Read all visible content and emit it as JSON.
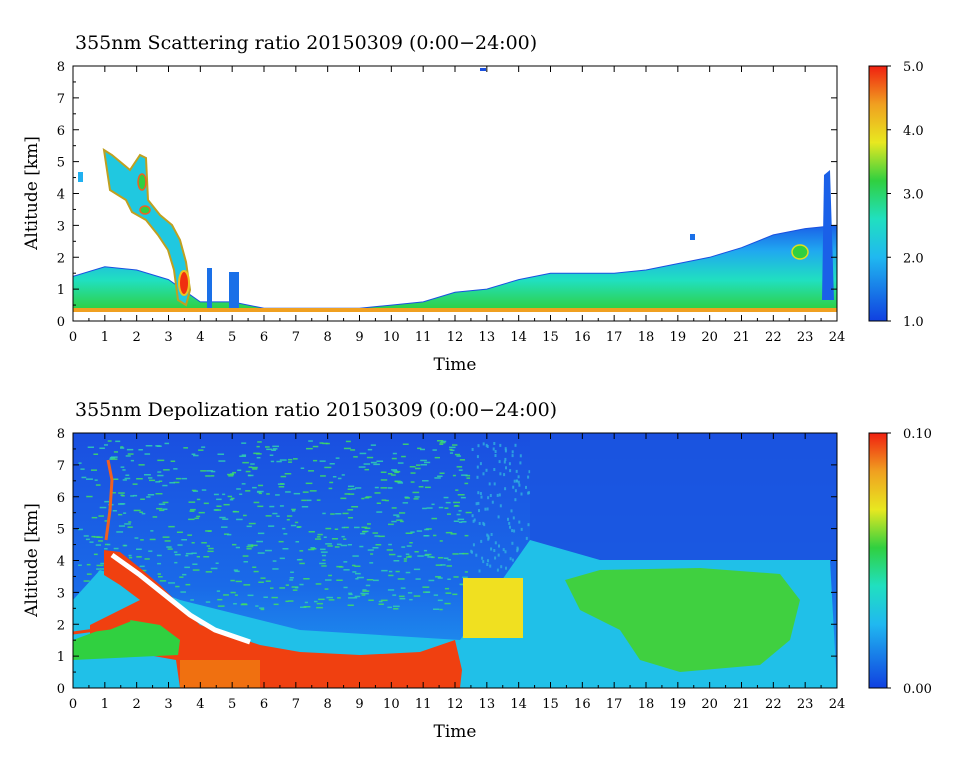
{
  "chart_data": [
    {
      "type": "heatmap",
      "title": "355nm Scattering ratio  20150309 (0:00−24:00)",
      "xlabel": "Time",
      "ylabel": "Altitude [km]",
      "xlim": [
        0,
        24
      ],
      "ylim": [
        0,
        8
      ],
      "xticks": [
        "0",
        "1",
        "2",
        "3",
        "4",
        "5",
        "6",
        "7",
        "8",
        "9",
        "10",
        "11",
        "12",
        "13",
        "14",
        "15",
        "16",
        "17",
        "18",
        "19",
        "20",
        "21",
        "22",
        "23",
        "24"
      ],
      "yticks": [
        "0",
        "1",
        "2",
        "3",
        "4",
        "5",
        "6",
        "7",
        "8"
      ],
      "colorbar": {
        "min": 1.0,
        "max": 5.0,
        "labels": [
          "1.0",
          "2.0",
          "3.0",
          "4.0",
          "5.0"
        ]
      },
      "colors": {
        "low": "#1040e0",
        "mid": "#20e0c0",
        "green": "#30d040",
        "yellow": "#f0e020",
        "high": "#f03010"
      },
      "features": {
        "boundary_layer_top_km": [
          [
            0,
            1.4
          ],
          [
            1,
            1.7
          ],
          [
            2,
            1.6
          ],
          [
            3,
            1.3
          ],
          [
            4,
            0.6
          ],
          [
            5,
            0.6
          ],
          [
            6,
            0.4
          ],
          [
            7,
            0.4
          ],
          [
            8,
            0.4
          ],
          [
            9,
            0.4
          ],
          [
            10,
            0.5
          ],
          [
            11,
            0.6
          ],
          [
            12,
            0.9
          ],
          [
            13,
            1.0
          ],
          [
            14,
            1.3
          ],
          [
            15,
            1.5
          ],
          [
            16,
            1.5
          ],
          [
            17,
            1.5
          ],
          [
            18,
            1.6
          ],
          [
            19,
            1.8
          ],
          [
            20,
            2.0
          ],
          [
            21,
            2.3
          ],
          [
            22,
            2.7
          ],
          [
            23,
            2.9
          ],
          [
            24,
            3.0
          ]
        ]
      }
    },
    {
      "type": "heatmap",
      "title": "355nm Depolization ratio  20150309 (0:00−24:00)",
      "xlabel": "Time",
      "ylabel": "Altitude [km]",
      "xlim": [
        0,
        24
      ],
      "ylim": [
        0,
        8
      ],
      "xticks": [
        "0",
        "1",
        "2",
        "3",
        "4",
        "5",
        "6",
        "7",
        "8",
        "9",
        "10",
        "11",
        "12",
        "13",
        "14",
        "15",
        "16",
        "17",
        "18",
        "19",
        "20",
        "21",
        "22",
        "23",
        "24"
      ],
      "yticks": [
        "0",
        "1",
        "2",
        "3",
        "4",
        "5",
        "6",
        "7",
        "8"
      ],
      "colorbar": {
        "min": 0.0,
        "max": 0.1,
        "labels": [
          "0.00",
          "0.10"
        ]
      },
      "colors": {
        "background": "#1a5fe8",
        "low": "#1040e0",
        "mid": "#20c8e0",
        "green": "#30d040",
        "yellow": "#f0e020",
        "high": "#f03010"
      },
      "features": {
        "dust_layer_top_km": [
          [
            1,
            4.4
          ],
          [
            2,
            3.8
          ],
          [
            3,
            3.2
          ],
          [
            4,
            2.0
          ],
          [
            5,
            1.6
          ],
          [
            6,
            1.4
          ],
          [
            7,
            1.3
          ],
          [
            8,
            1.1
          ],
          [
            9,
            1.1
          ],
          [
            10,
            1.2
          ],
          [
            11,
            1.3
          ],
          [
            12,
            1.6
          ]
        ]
      }
    }
  ]
}
